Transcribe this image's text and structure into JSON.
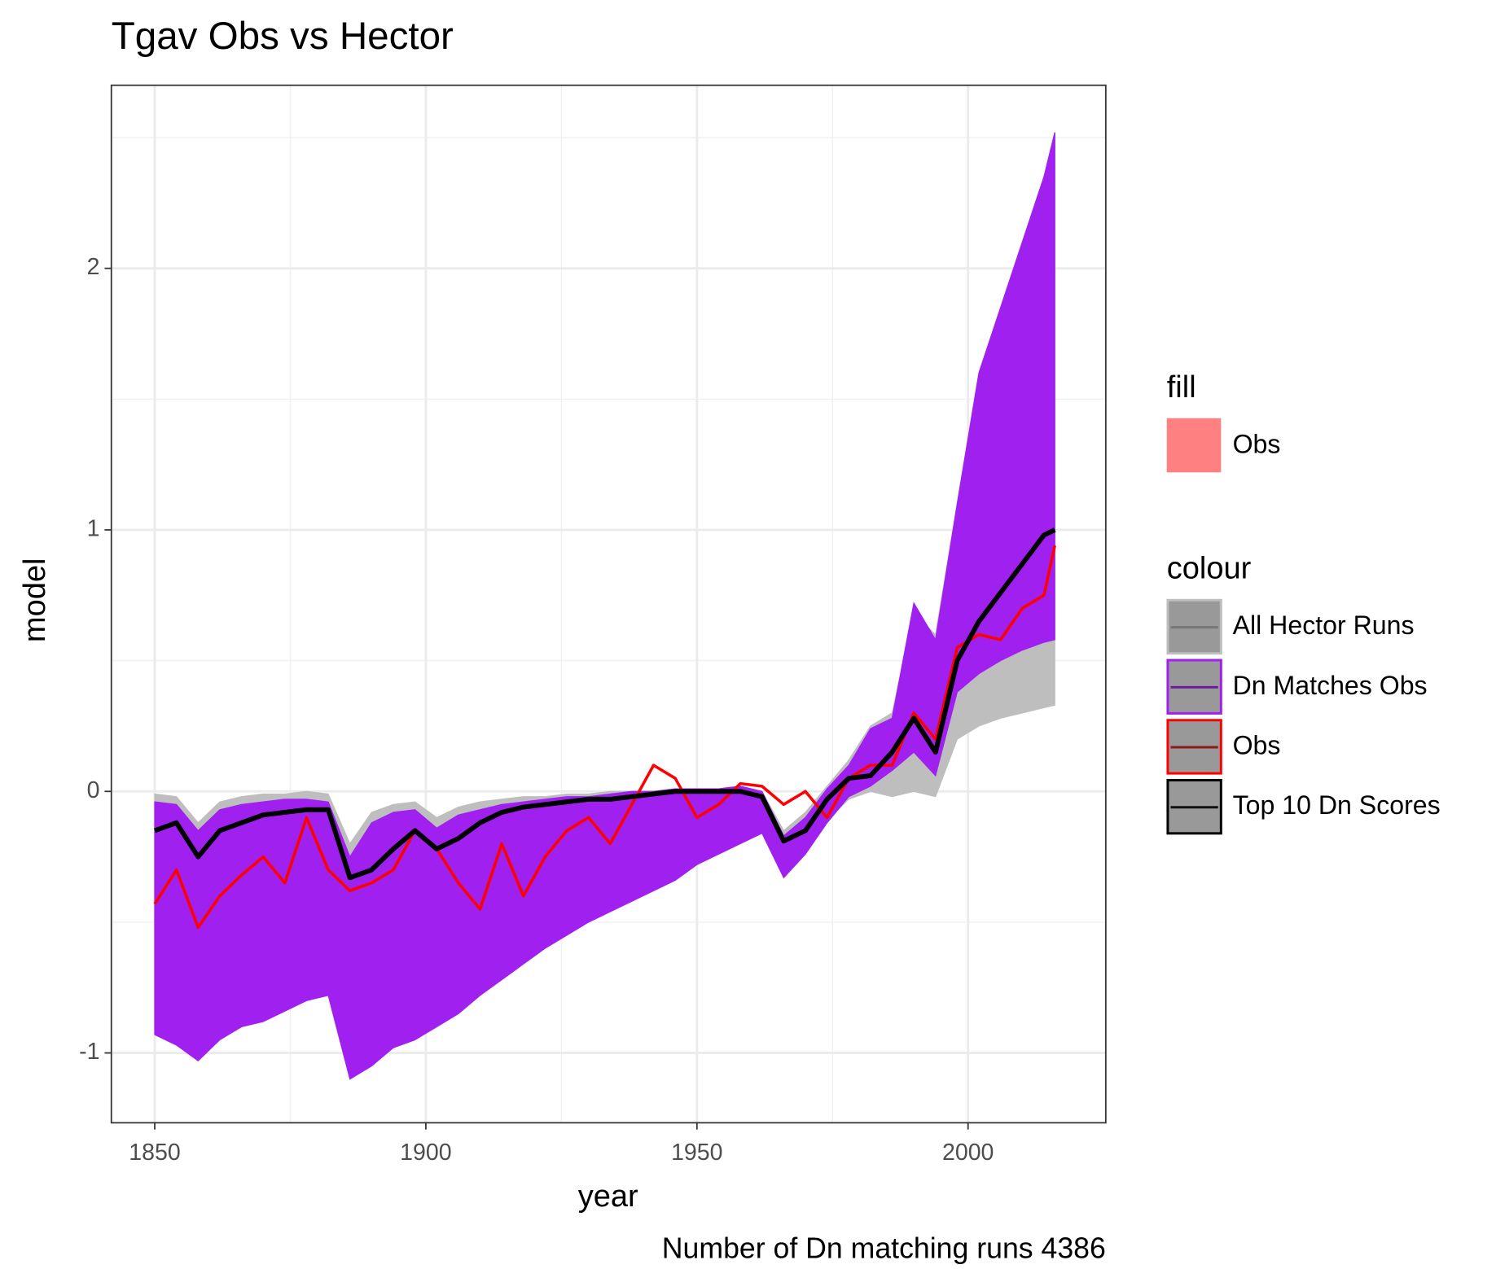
{
  "chart_data": {
    "type": "line",
    "title": "Tgav Obs vs Hector",
    "x_label": "year",
    "y_label": "model",
    "caption": "Number of Dn matching runs 4386",
    "xlim": [
      1842,
      2025.4
    ],
    "ylim": [
      -1.267,
      2.7
    ],
    "xticks": [
      1850,
      1900,
      1950,
      2000
    ],
    "yticks": [
      -1,
      0,
      1,
      2
    ],
    "x_minor_grid": [
      1875,
      1925,
      1975
    ],
    "y_minor_grid": [
      -0.5,
      0.5,
      1.5,
      2.5
    ],
    "grid": true,
    "legend": "right",
    "fill_legend": {
      "title": "fill",
      "items": [
        {
          "name": "Obs",
          "color": "#ff8080"
        }
      ]
    },
    "colour_legend_title": "colour",
    "x": [
      1850,
      1854,
      1858,
      1862,
      1866,
      1870,
      1874,
      1878,
      1882,
      1886,
      1890,
      1894,
      1898,
      1902,
      1906,
      1910,
      1914,
      1918,
      1922,
      1926,
      1930,
      1934,
      1938,
      1942,
      1946,
      1950,
      1954,
      1958,
      1962,
      1966,
      1970,
      1974,
      1978,
      1982,
      1986,
      1990,
      1994,
      1998,
      2002,
      2006,
      2010,
      2014,
      2016
    ],
    "series": [
      {
        "name": "All Hector Runs",
        "color": "#bebebe",
        "kind": "band",
        "low": [
          -0.9,
          -0.94,
          -1.0,
          -0.92,
          -0.88,
          -0.85,
          -0.82,
          -0.78,
          -0.76,
          -1.05,
          -1.0,
          -0.95,
          -0.92,
          -0.88,
          -0.83,
          -0.76,
          -0.7,
          -0.64,
          -0.58,
          -0.53,
          -0.48,
          -0.44,
          -0.4,
          -0.36,
          -0.32,
          -0.27,
          -0.23,
          -0.19,
          -0.15,
          -0.32,
          -0.23,
          -0.11,
          -0.03,
          0.0,
          -0.02,
          0.0,
          -0.02,
          0.2,
          0.25,
          0.28,
          0.3,
          0.32,
          0.33
        ],
        "high": [
          -0.01,
          -0.02,
          -0.12,
          -0.04,
          -0.02,
          -0.01,
          -0.01,
          0,
          -0.01,
          -0.2,
          -0.08,
          -0.05,
          -0.04,
          -0.1,
          -0.06,
          -0.04,
          -0.03,
          -0.02,
          -0.02,
          -0.01,
          -0.01,
          0,
          0,
          0,
          0.01,
          0.01,
          0.01,
          0.02,
          0,
          -0.15,
          -0.08,
          0.02,
          0.12,
          0.25,
          0.3,
          0.68,
          0.6,
          1.1,
          1.6,
          1.85,
          2.1,
          2.35,
          2.52
        ]
      },
      {
        "name": "Dn Matches Obs",
        "color": "#a020f0",
        "kind": "band",
        "low": [
          -0.93,
          -0.97,
          -1.03,
          -0.95,
          -0.9,
          -0.88,
          -0.84,
          -0.8,
          -0.78,
          -1.1,
          -1.05,
          -0.98,
          -0.95,
          -0.9,
          -0.85,
          -0.78,
          -0.72,
          -0.66,
          -0.6,
          -0.55,
          -0.5,
          -0.46,
          -0.42,
          -0.38,
          -0.34,
          -0.28,
          -0.24,
          -0.2,
          -0.16,
          -0.33,
          -0.24,
          -0.12,
          -0.02,
          0.02,
          0.08,
          0.15,
          0.06,
          0.38,
          0.45,
          0.5,
          0.54,
          0.57,
          0.58
        ],
        "high": [
          -0.04,
          -0.05,
          -0.15,
          -0.07,
          -0.05,
          -0.04,
          -0.03,
          -0.03,
          -0.04,
          -0.25,
          -0.12,
          -0.08,
          -0.07,
          -0.14,
          -0.09,
          -0.07,
          -0.05,
          -0.04,
          -0.03,
          -0.02,
          -0.02,
          -0.01,
          0,
          0,
          0.01,
          0.01,
          0.01,
          0.02,
          0,
          -0.17,
          -0.1,
          0.01,
          0.1,
          0.24,
          0.28,
          0.72,
          0.58,
          1.1,
          1.6,
          1.85,
          2.1,
          2.35,
          2.52
        ]
      },
      {
        "name": "Obs",
        "color": "#ff0000",
        "kind": "line",
        "values": [
          -0.43,
          -0.3,
          -0.52,
          -0.4,
          -0.32,
          -0.25,
          -0.35,
          -0.1,
          -0.3,
          -0.38,
          -0.35,
          -0.3,
          -0.15,
          -0.22,
          -0.35,
          -0.45,
          -0.2,
          -0.4,
          -0.25,
          -0.15,
          -0.1,
          -0.2,
          -0.05,
          0.1,
          0.05,
          -0.1,
          -0.05,
          0.03,
          0.02,
          -0.05,
          0.0,
          -0.1,
          0.05,
          0.1,
          0.1,
          0.3,
          0.2,
          0.55,
          0.6,
          0.58,
          0.7,
          0.75,
          0.94
        ]
      },
      {
        "name": "Top 10 Dn Scores",
        "color": "#000000",
        "kind": "line",
        "values": [
          -0.15,
          -0.12,
          -0.25,
          -0.15,
          -0.12,
          -0.09,
          -0.08,
          -0.07,
          -0.07,
          -0.33,
          -0.3,
          -0.22,
          -0.15,
          -0.22,
          -0.18,
          -0.12,
          -0.08,
          -0.06,
          -0.05,
          -0.04,
          -0.03,
          -0.03,
          -0.02,
          -0.01,
          0,
          0,
          0,
          0,
          -0.02,
          -0.19,
          -0.15,
          -0.03,
          0.05,
          0.06,
          0.15,
          0.28,
          0.15,
          0.5,
          0.65,
          0.76,
          0.87,
          0.98,
          1.0
        ]
      }
    ]
  }
}
